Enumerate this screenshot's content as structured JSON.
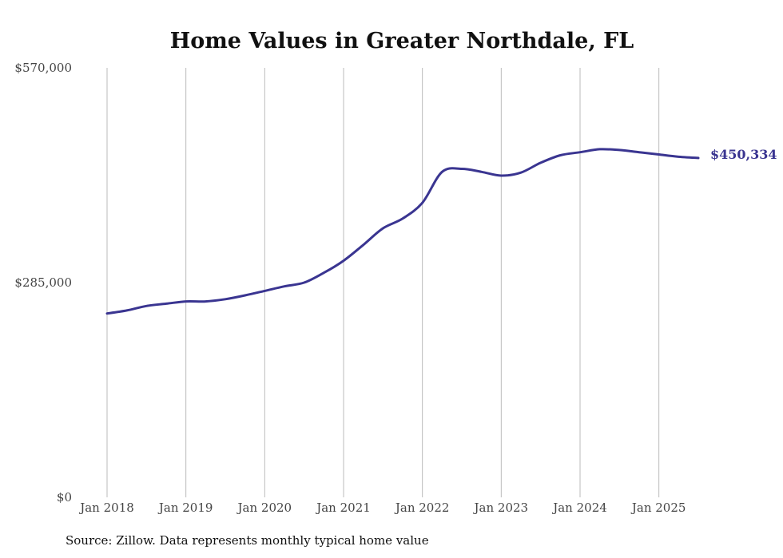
{
  "chart_data": {
    "type": "line",
    "title": "Home Values in Greater Northdale, FL",
    "source": "Source: Zillow. Data represents monthly typical home value",
    "ylim": [
      0,
      570000
    ],
    "yticks": [
      0,
      285000,
      570000
    ],
    "ytick_labels": [
      "$0",
      "$285,000",
      "$570,000"
    ],
    "xlim": [
      "2018-01",
      "2025-07"
    ],
    "xticks": [
      "2018-01",
      "2019-01",
      "2020-01",
      "2021-01",
      "2022-01",
      "2023-01",
      "2024-01",
      "2025-01"
    ],
    "xtick_labels": [
      "Jan 2018",
      "Jan 2019",
      "Jan 2020",
      "Jan 2021",
      "Jan 2022",
      "Jan 2023",
      "Jan 2024",
      "Jan 2025"
    ],
    "grid": {
      "vertical": true,
      "horizontal": false
    },
    "line_color": "#3a3591",
    "grid_color": "#bbbbbb",
    "end_label": "$450,334",
    "series": [
      {
        "x": [
          "2018-01",
          "2018-04",
          "2018-07",
          "2018-10",
          "2019-01",
          "2019-04",
          "2019-07",
          "2019-10",
          "2020-01",
          "2020-04",
          "2020-07",
          "2020-10",
          "2021-01",
          "2021-04",
          "2021-07",
          "2021-10",
          "2022-01",
          "2022-04",
          "2022-07",
          "2022-10",
          "2023-01",
          "2023-04",
          "2023-07",
          "2023-10",
          "2024-01",
          "2024-04",
          "2024-07",
          "2024-10",
          "2025-01",
          "2025-04",
          "2025-07"
        ],
        "values": [
          244000,
          248000,
          254000,
          257000,
          260000,
          260000,
          263000,
          268000,
          274000,
          280000,
          285000,
          298000,
          314000,
          335000,
          357000,
          370000,
          391000,
          432000,
          436000,
          432000,
          427000,
          431000,
          444000,
          454000,
          458000,
          462000,
          461000,
          458000,
          455000,
          452000,
          450334
        ]
      }
    ]
  }
}
